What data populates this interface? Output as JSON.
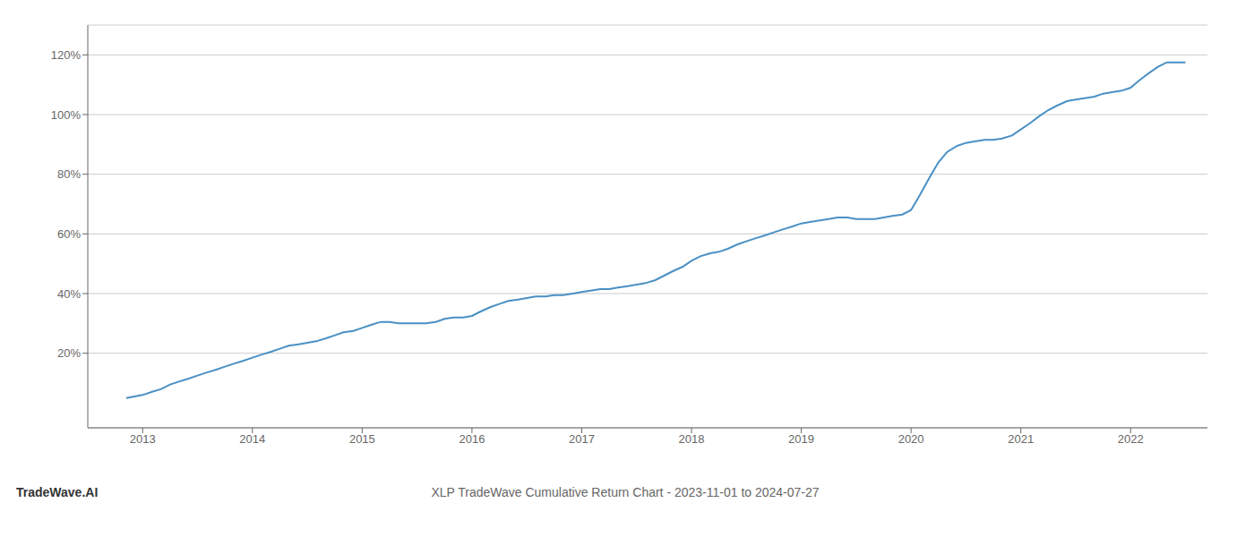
{
  "chart_data": {
    "type": "line",
    "title": "XLP TradeWave Cumulative Return Chart - 2023-11-01 to 2024-07-27",
    "annotations": [
      "TradeWave.AI"
    ],
    "color": "#4a90c4",
    "grid": "y",
    "x": [
      2012.85,
      2013.0,
      2013.08,
      2013.17,
      2013.25,
      2013.33,
      2013.42,
      2013.5,
      2013.58,
      2013.67,
      2013.75,
      2013.83,
      2013.92,
      2014.0,
      2014.08,
      2014.17,
      2014.25,
      2014.33,
      2014.42,
      2014.5,
      2014.58,
      2014.67,
      2014.75,
      2014.83,
      2014.92,
      2015.0,
      2015.08,
      2015.17,
      2015.25,
      2015.33,
      2015.42,
      2015.5,
      2015.58,
      2015.67,
      2015.75,
      2015.83,
      2015.92,
      2016.0,
      2016.08,
      2016.17,
      2016.25,
      2016.33,
      2016.42,
      2016.5,
      2016.58,
      2016.67,
      2016.75,
      2016.83,
      2016.92,
      2017.0,
      2017.08,
      2017.17,
      2017.25,
      2017.33,
      2017.42,
      2017.5,
      2017.58,
      2017.67,
      2017.75,
      2017.83,
      2017.92,
      2018.0,
      2018.08,
      2018.17,
      2018.25,
      2018.33,
      2018.42,
      2018.5,
      2018.58,
      2018.67,
      2018.75,
      2018.83,
      2018.92,
      2019.0,
      2019.08,
      2019.17,
      2019.25,
      2019.33,
      2019.42,
      2019.5,
      2019.58,
      2019.67,
      2019.75,
      2019.83,
      2019.92,
      2020.0,
      2020.08,
      2020.17,
      2020.25,
      2020.33,
      2020.42,
      2020.5,
      2020.58,
      2020.67,
      2020.75,
      2020.83,
      2020.92,
      2021.0,
      2021.08,
      2021.17,
      2021.25,
      2021.33,
      2021.42,
      2021.5,
      2021.58,
      2021.67,
      2021.75,
      2021.83,
      2021.92,
      2022.0,
      2022.08,
      2022.17,
      2022.25,
      2022.33,
      2022.42,
      2022.5
    ],
    "values": [
      5.0,
      6.0,
      7.0,
      8.0,
      9.5,
      10.5,
      11.5,
      12.5,
      13.5,
      14.5,
      15.5,
      16.5,
      17.5,
      18.5,
      19.5,
      20.5,
      21.5,
      22.5,
      23.0,
      23.5,
      24.0,
      25.0,
      26.0,
      27.0,
      27.5,
      28.5,
      29.5,
      30.5,
      30.5,
      30.0,
      30.0,
      30.0,
      30.0,
      30.5,
      31.5,
      32.0,
      32.0,
      32.5,
      34.0,
      35.5,
      36.5,
      37.5,
      38.0,
      38.5,
      39.0,
      39.0,
      39.5,
      39.5,
      40.0,
      40.5,
      41.0,
      41.5,
      41.5,
      42.0,
      42.5,
      43.0,
      43.5,
      44.5,
      46.0,
      47.5,
      49.0,
      51.0,
      52.5,
      53.5,
      54.0,
      55.0,
      56.5,
      57.5,
      58.5,
      59.5,
      60.5,
      61.5,
      62.5,
      63.5,
      64.0,
      64.5,
      65.0,
      65.5,
      65.5,
      65.0,
      65.0,
      65.0,
      65.5,
      66.0,
      66.5,
      68.0,
      73.0,
      79.0,
      84.0,
      87.5,
      89.5,
      90.5,
      91.0,
      91.5,
      91.5,
      92.0,
      93.0,
      95.0,
      97.0,
      99.5,
      101.5,
      103.0,
      104.5,
      105.0,
      105.5,
      106.0,
      107.0,
      107.5,
      108.0,
      109.0,
      111.5,
      114.0,
      116.0,
      117.5,
      117.5,
      117.5
    ],
    "xlim": [
      2012.5,
      2022.7
    ],
    "xticks": [
      2013,
      2014,
      2015,
      2016,
      2017,
      2018,
      2019,
      2020,
      2021,
      2022
    ],
    "ylim": [
      -5,
      130
    ],
    "yticks": [
      {
        "value": 20,
        "label": "20%"
      },
      {
        "value": 40,
        "label": "40%"
      },
      {
        "value": 60,
        "label": "60%"
      },
      {
        "value": 80,
        "label": "80%"
      },
      {
        "value": 100,
        "label": "100%"
      },
      {
        "value": 120,
        "label": "120%"
      }
    ]
  }
}
